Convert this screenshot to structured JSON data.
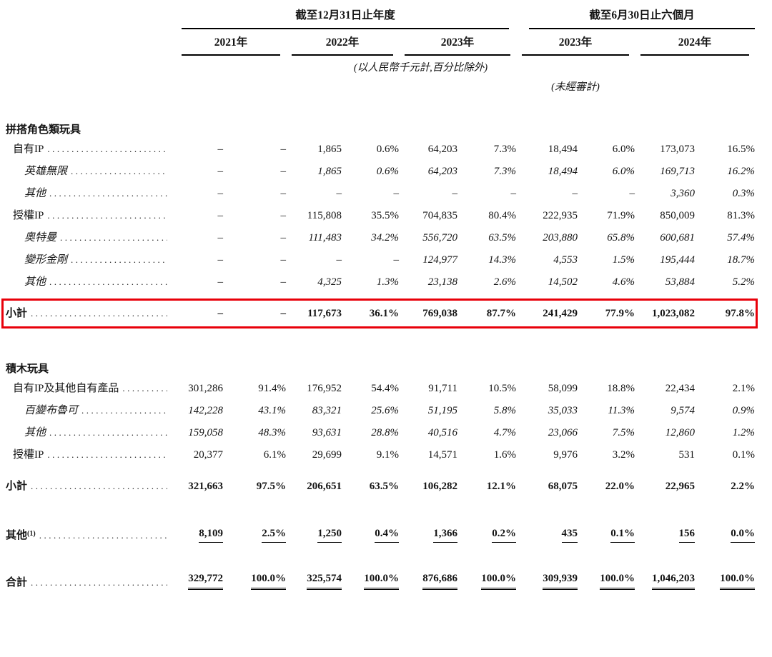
{
  "header": {
    "period_groups": [
      {
        "label": "截至12月31日止年度"
      },
      {
        "label": "截至6月30日止六個月"
      }
    ],
    "year_columns": [
      "2021年",
      "2022年",
      "2023年",
      "2023年",
      "2024年"
    ],
    "notes": {
      "currency_note": "(以人民幣千元計,百分比除外)",
      "unaudited_note": "(未經審計)"
    }
  },
  "table": {
    "highlight_color": "#e8000a",
    "nil_symbol": "–",
    "rows": [
      {
        "type": "section",
        "label": "拼搭角色類玩具",
        "dots": false,
        "values": []
      },
      {
        "type": "item",
        "label": "自有IP",
        "dots": true,
        "values": [
          "–",
          "–",
          "1,865",
          "0.6%",
          "64,203",
          "7.3%",
          "18,494",
          "6.0%",
          "173,073",
          "16.5%"
        ]
      },
      {
        "type": "subitem",
        "label": "英雄無限",
        "dots": true,
        "values": [
          "–",
          "–",
          "1,865",
          "0.6%",
          "64,203",
          "7.3%",
          "18,494",
          "6.0%",
          "169,713",
          "16.2%"
        ]
      },
      {
        "type": "subitem",
        "label": "其他",
        "dots": true,
        "values": [
          "–",
          "–",
          "–",
          "–",
          "–",
          "–",
          "–",
          "–",
          "3,360",
          "0.3%"
        ]
      },
      {
        "type": "item",
        "label": "授權IP",
        "dots": true,
        "values": [
          "–",
          "–",
          "115,808",
          "35.5%",
          "704,835",
          "80.4%",
          "222,935",
          "71.9%",
          "850,009",
          "81.3%"
        ]
      },
      {
        "type": "subitem",
        "label": "奧特曼",
        "dots": true,
        "values": [
          "–",
          "–",
          "111,483",
          "34.2%",
          "556,720",
          "63.5%",
          "203,880",
          "65.8%",
          "600,681",
          "57.4%"
        ]
      },
      {
        "type": "subitem",
        "label": "變形金剛",
        "dots": true,
        "values": [
          "–",
          "–",
          "–",
          "–",
          "124,977",
          "14.3%",
          "4,553",
          "1.5%",
          "195,444",
          "18.7%"
        ]
      },
      {
        "type": "subitem",
        "label": "其他",
        "dots": true,
        "values": [
          "–",
          "–",
          "4,325",
          "1.3%",
          "23,138",
          "2.6%",
          "14,502",
          "4.6%",
          "53,884",
          "5.2%"
        ]
      },
      {
        "type": "subtotal",
        "label": "小計",
        "dots": true,
        "highlighted": true,
        "values": [
          "–",
          "–",
          "117,673",
          "36.1%",
          "769,038",
          "87.7%",
          "241,429",
          "77.9%",
          "1,023,082",
          "97.8%"
        ]
      },
      {
        "type": "section",
        "label": "積木玩具",
        "dots": false,
        "values": []
      },
      {
        "type": "item",
        "label": "自有IP及其他自有產品",
        "dots": true,
        "values": [
          "301,286",
          "91.4%",
          "176,952",
          "54.4%",
          "91,711",
          "10.5%",
          "58,099",
          "18.8%",
          "22,434",
          "2.1%"
        ]
      },
      {
        "type": "subitem",
        "label": "百變布魯可",
        "dots": true,
        "values": [
          "142,228",
          "43.1%",
          "83,321",
          "25.6%",
          "51,195",
          "5.8%",
          "35,033",
          "11.3%",
          "9,574",
          "0.9%"
        ]
      },
      {
        "type": "subitem",
        "label": "其他",
        "dots": true,
        "values": [
          "159,058",
          "48.3%",
          "93,631",
          "28.8%",
          "40,516",
          "4.7%",
          "23,066",
          "7.5%",
          "12,860",
          "1.2%"
        ]
      },
      {
        "type": "item",
        "label": "授權IP",
        "dots": true,
        "values": [
          "20,377",
          "6.1%",
          "29,699",
          "9.1%",
          "14,571",
          "1.6%",
          "9,976",
          "3.2%",
          "531",
          "0.1%"
        ]
      },
      {
        "type": "subtotal",
        "label": "小計",
        "dots": true,
        "values": [
          "321,663",
          "97.5%",
          "206,651",
          "63.5%",
          "106,282",
          "12.1%",
          "68,075",
          "22.0%",
          "22,965",
          "2.2%"
        ]
      },
      {
        "type": "other",
        "label": "其他",
        "label_sup": "(1)",
        "dots": true,
        "value_underline": "single",
        "values": [
          "8,109",
          "2.5%",
          "1,250",
          "0.4%",
          "1,366",
          "0.2%",
          "435",
          "0.1%",
          "156",
          "0.0%"
        ]
      },
      {
        "type": "total",
        "label": "合計",
        "dots": true,
        "value_underline": "double",
        "values": [
          "329,772",
          "100.0%",
          "325,574",
          "100.0%",
          "876,686",
          "100.0%",
          "309,939",
          "100.0%",
          "1,046,203",
          "100.0%"
        ]
      }
    ]
  }
}
